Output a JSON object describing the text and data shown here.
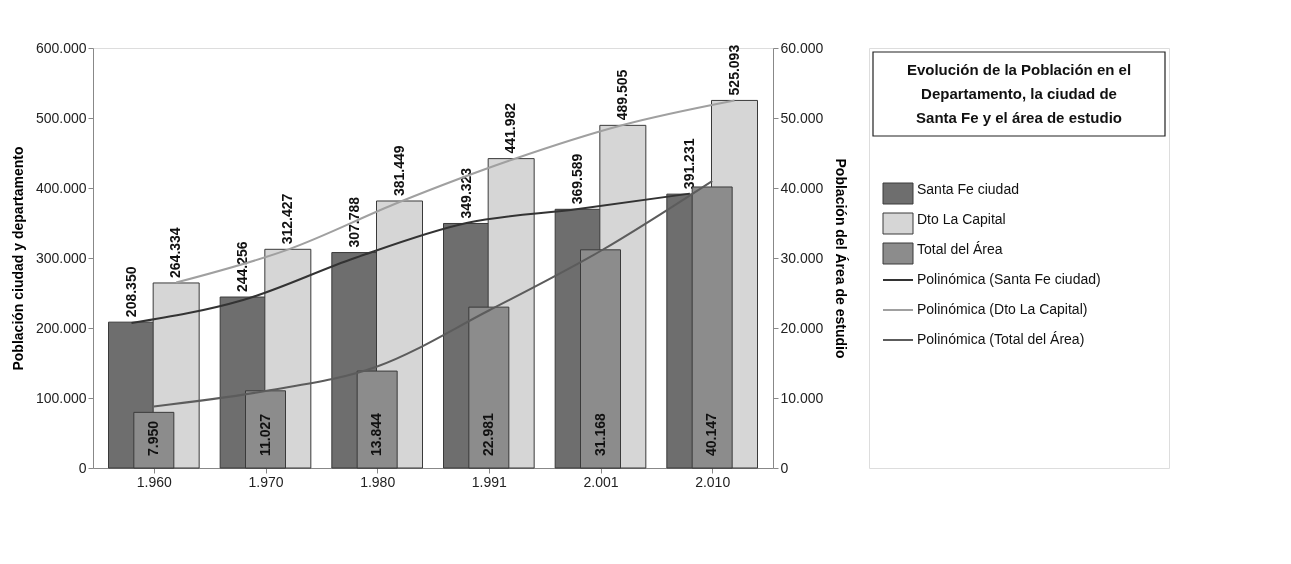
{
  "chart_data": {
    "type": "bar",
    "title": "Evolución de la Población en el Departamento, la ciudad de Santa Fe y el área de estudio",
    "ylabel": "Población ciudad y departamento",
    "y2label": "Población del Área de estudio",
    "categories": [
      "1.960",
      "1.970",
      "1.980",
      "1.991",
      "2.001",
      "2.010"
    ],
    "series": [
      {
        "name": "Santa Fe ciudad",
        "color": "#6e6e6e",
        "values": [
          208350,
          244256,
          307788,
          349323,
          369589,
          391231
        ],
        "value_labels": [
          "208.350",
          "244.256",
          "307.788",
          "349.323",
          "369.589",
          "391.231"
        ]
      },
      {
        "name": "Dto La Capital",
        "color": "#d6d6d6",
        "values": [
          264334,
          312427,
          381449,
          441982,
          489505,
          525093
        ],
        "value_labels": [
          "264.334",
          "312.427",
          "381.449",
          "441.982",
          "489.505",
          "525.093"
        ]
      },
      {
        "name": "Total del Área",
        "axis": "y2",
        "color": "#8c8c8c",
        "values": [
          7950,
          11027,
          13844,
          22981,
          31168,
          40147
        ],
        "value_labels": [
          "7.950",
          "11.027",
          "13.844",
          "22.981",
          "31.168",
          "40.147"
        ]
      },
      {
        "name": "Polinómica (Santa Fe ciudad)",
        "type": "line",
        "color": "#333333",
        "values": [
          207000,
          240000,
          300000,
          350000,
          370000,
          392000
        ]
      },
      {
        "name": "Polinómica (Dto La Capital)",
        "type": "line",
        "color": "#a0a0a0",
        "values": [
          265000,
          312000,
          380000,
          440000,
          490000,
          525000
        ]
      },
      {
        "name": "Polinómica (Total del Área)",
        "type": "line",
        "axis": "y2",
        "color": "#5c5c5c",
        "values": [
          8800,
          11000,
          14500,
          22500,
          31000,
          41000
        ]
      }
    ],
    "ylim": [
      0,
      600000
    ],
    "yticks": [
      0,
      {
        "value": 100000,
        "label": "100.000"
      },
      {
        "value": 200000,
        "label": "200.000"
      },
      {
        "value": 300000,
        "label": "300.000"
      },
      {
        "value": 400000,
        "label": "400.000"
      },
      {
        "value": 500000,
        "label": "500.000"
      },
      {
        "value": 600000,
        "label": "600.000"
      }
    ],
    "y2lim": [
      0,
      60000
    ],
    "y2ticks": [
      0,
      {
        "value": 10000,
        "label": "10.000"
      },
      {
        "value": 20000,
        "label": "20.000"
      },
      {
        "value": 30000,
        "label": "30.000"
      },
      {
        "value": 40000,
        "label": "40.000"
      },
      {
        "value": 50000,
        "label": "50.000"
      },
      {
        "value": 60000,
        "label": "60.000"
      }
    ],
    "legend": "right"
  }
}
